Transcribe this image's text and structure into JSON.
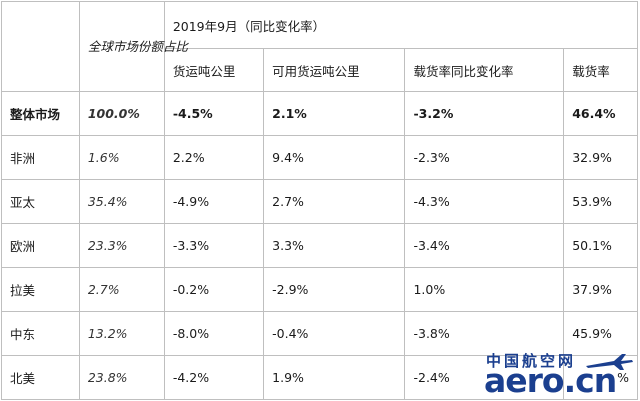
{
  "table": {
    "share_header": "全球市场份额占比",
    "period_header": "2019年9月（同比变化率）",
    "col_headers": [
      "货运吨公里",
      "可用货运吨公里",
      "载货率同比变化率",
      "载货率"
    ],
    "rows": [
      {
        "region": "整体市场",
        "share": "100.0%",
        "ftk": "-4.5%",
        "aftk": "2.1%",
        "lf_change": "-3.2%",
        "lf": "46.4%"
      },
      {
        "region": "非洲",
        "share": "1.6%",
        "ftk": "2.2%",
        "aftk": "9.4%",
        "lf_change": "-2.3%",
        "lf": "32.9%"
      },
      {
        "region": "亚太",
        "share": "35.4%",
        "ftk": "-4.9%",
        "aftk": "2.7%",
        "lf_change": "-4.3%",
        "lf": "53.9%"
      },
      {
        "region": "欧洲",
        "share": "23.3%",
        "ftk": "-3.3%",
        "aftk": "3.3%",
        "lf_change": "-3.4%",
        "lf": "50.1%"
      },
      {
        "region": "拉美",
        "share": "2.7%",
        "ftk": "-0.2%",
        "aftk": "-2.9%",
        "lf_change": "1.0%",
        "lf": "37.9%"
      },
      {
        "region": "中东",
        "share": "13.2%",
        "ftk": "-8.0%",
        "aftk": "-0.4%",
        "lf_change": "-3.8%",
        "lf": "45.9%"
      },
      {
        "region": "北美",
        "share": "23.8%",
        "ftk": "-4.2%",
        "aftk": "1.9%",
        "lf_change": "-2.4%",
        "lf": "%"
      }
    ]
  },
  "watermark": {
    "cn": "中国航空网",
    "en": "aero.cn",
    "color": "#1b3f8f"
  }
}
